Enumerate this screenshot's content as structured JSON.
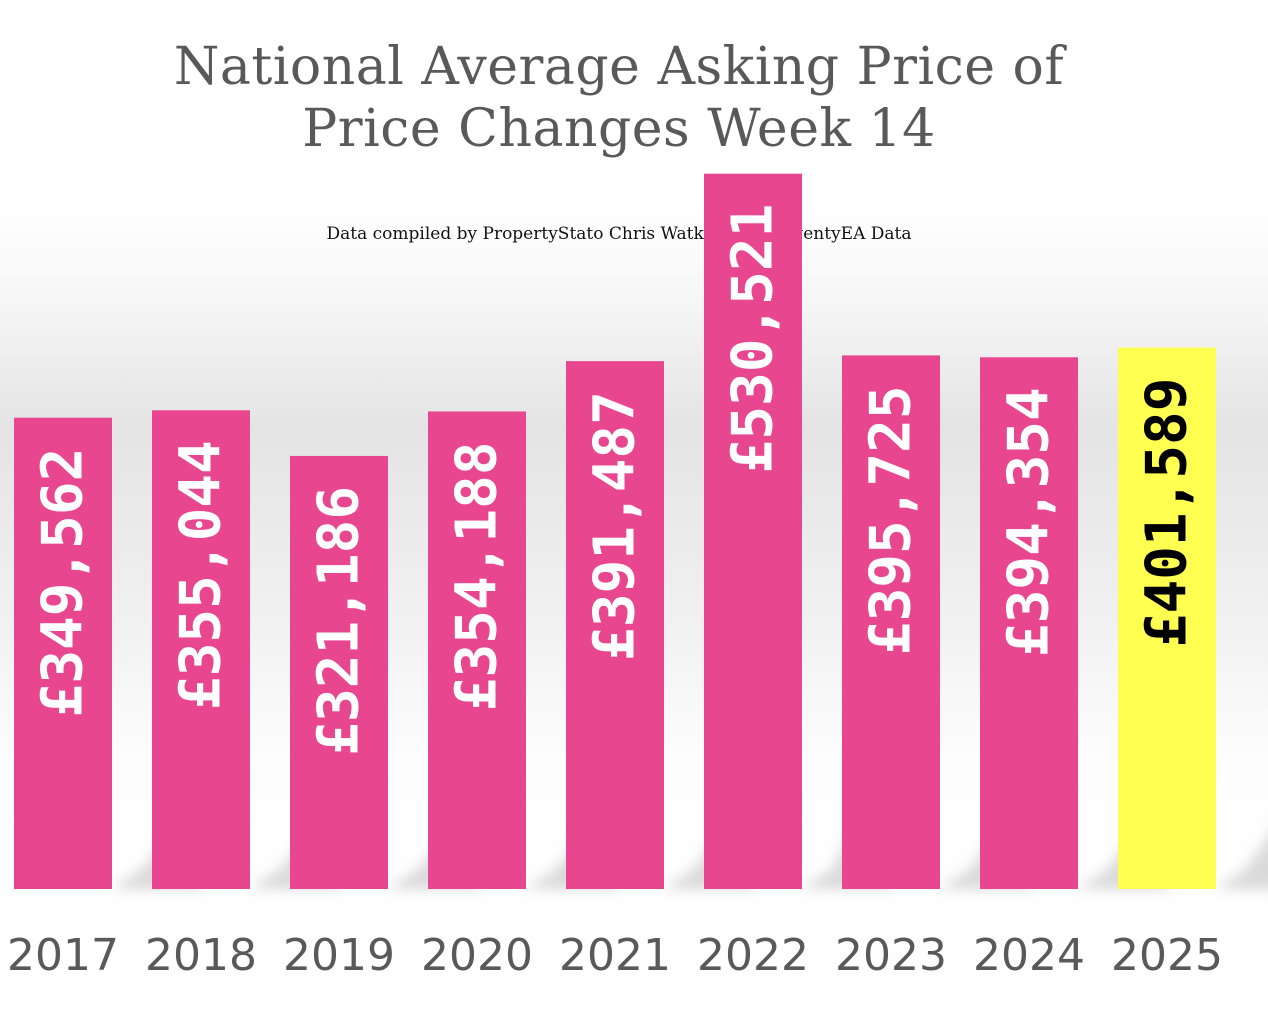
{
  "chart_data": {
    "type": "bar",
    "title": [
      "National Average Asking Price of",
      "Price Changes Week 14"
    ],
    "subtitle": "Data compiled by PropertyStato Chris Watkin using TwentyEA Data",
    "categories": [
      "2017",
      "2018",
      "2019",
      "2020",
      "2021",
      "2022",
      "2023",
      "2024",
      "2025"
    ],
    "values": [
      349562,
      355044,
      321186,
      354188,
      391487,
      530521,
      395725,
      394354,
      401589
    ],
    "data_labels": [
      "£349,562",
      "£355,044",
      "£321,186",
      "£354,188",
      "£391,487",
      "£530,521",
      "£395,725",
      "£394,354",
      "£401,589"
    ],
    "highlight_index": 8,
    "ylim": [
      0,
      600000
    ],
    "grid": false,
    "legend": "none",
    "xlabel": "",
    "ylabel": ""
  },
  "colors": {
    "bar": "#e8478f",
    "highlight_bar": "#ffff52",
    "label_on_bar": "#ffffff",
    "label_on_highlight": "#000000",
    "tick_label": "#595959",
    "title": "#595959",
    "shadow": "#bdbdbd"
  }
}
